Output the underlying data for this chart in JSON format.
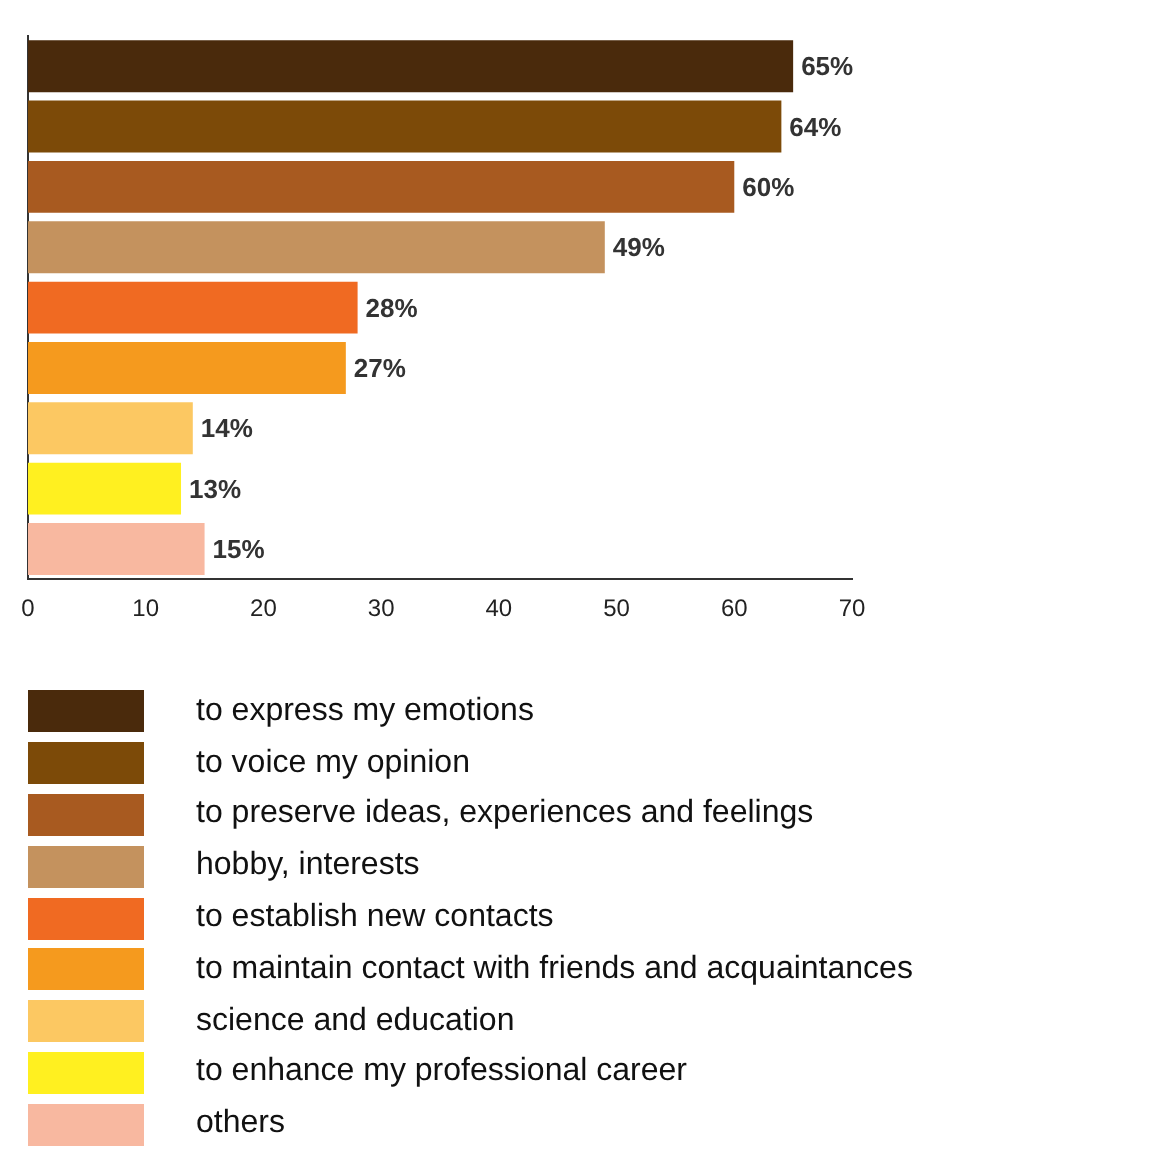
{
  "chart_data": {
    "type": "bar",
    "orientation": "horizontal",
    "stacked": true,
    "categories": [
      null,
      null,
      null,
      null,
      null,
      null,
      null,
      null,
      null
    ],
    "series": [
      {
        "name": "to express my emotions",
        "color": "#4a2a0c",
        "values": [
          65,
          null,
          null,
          null,
          null,
          null,
          null,
          null,
          null
        ],
        "value_labels": [
          "65%",
          null,
          null,
          null,
          null,
          null,
          null,
          null,
          null
        ]
      },
      {
        "name": "to voice my opinion",
        "color": "#7c4a08",
        "values": [
          null,
          64,
          null,
          null,
          null,
          null,
          null,
          null,
          null
        ],
        "value_labels": [
          null,
          "64%",
          null,
          null,
          null,
          null,
          null,
          null,
          null
        ]
      },
      {
        "name": "to preserve ideas, experiences and feelings",
        "color": "#a85a20",
        "values": [
          null,
          null,
          60,
          null,
          null,
          null,
          null,
          null,
          null
        ],
        "value_labels": [
          null,
          null,
          "60%",
          null,
          null,
          null,
          null,
          null,
          null
        ]
      },
      {
        "name": "hobby, interests",
        "color": "#c4925e",
        "values": [
          null,
          null,
          null,
          49,
          null,
          null,
          null,
          null,
          null
        ],
        "value_labels": [
          null,
          null,
          null,
          "49%",
          null,
          null,
          null,
          null,
          null
        ]
      },
      {
        "name": "to establish new contacts",
        "color": "#f06a22",
        "values": [
          null,
          null,
          null,
          null,
          28,
          null,
          null,
          null,
          null
        ],
        "value_labels": [
          null,
          null,
          null,
          null,
          "28%",
          null,
          null,
          null,
          null
        ]
      },
      {
        "name": "to maintain contact with friends and acquaintances",
        "color": "#f59a1e",
        "values": [
          null,
          null,
          null,
          null,
          null,
          27,
          null,
          null,
          null
        ],
        "value_labels": [
          null,
          null,
          null,
          null,
          null,
          "27%",
          null,
          null,
          null
        ]
      },
      {
        "name": "science and education",
        "color": "#fcc862",
        "values": [
          null,
          null,
          null,
          null,
          null,
          null,
          14,
          null,
          null
        ],
        "value_labels": [
          null,
          null,
          null,
          null,
          null,
          null,
          "14%",
          null,
          null
        ]
      },
      {
        "name": "to enhance my professional career",
        "color": "#fff020",
        "values": [
          null,
          null,
          null,
          null,
          null,
          null,
          null,
          13,
          null
        ],
        "value_labels": [
          null,
          null,
          null,
          null,
          null,
          null,
          null,
          "13%",
          null
        ]
      },
      {
        "name": "others",
        "color": "#f8b8a0",
        "values": [
          null,
          null,
          null,
          null,
          null,
          null,
          null,
          null,
          15
        ],
        "value_labels": [
          null,
          null,
          null,
          null,
          null,
          null,
          null,
          null,
          "15%"
        ]
      }
    ],
    "xlim": [
      0,
      70
    ],
    "xticks": [
      0,
      10,
      20,
      30,
      40,
      50,
      60,
      70
    ],
    "grid": false,
    "legend": "bottom"
  }
}
